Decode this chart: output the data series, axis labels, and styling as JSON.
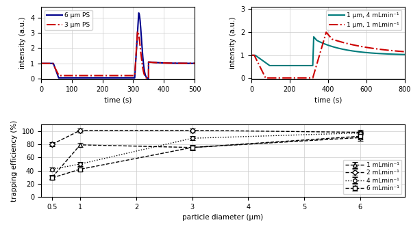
{
  "top_left": {
    "xlabel": "time (s)",
    "ylabel": "intensity (a.u.)",
    "xlim": [
      0,
      500
    ],
    "ylim": [
      -0.05,
      4.7
    ],
    "yticks": [
      0,
      1,
      2,
      3,
      4
    ],
    "legend": [
      {
        "label": "6 μm PS",
        "color": "#00008B",
        "ls": "-",
        "lw": 1.5
      },
      {
        "label": "3 μm PS",
        "color": "#CC0000",
        "ls": "-.",
        "lw": 1.5
      }
    ]
  },
  "top_right": {
    "xlabel": "time (s)",
    "ylabel": "intensity (a.u.)",
    "xlim": [
      0,
      800
    ],
    "ylim": [
      -0.05,
      3.1
    ],
    "yticks": [
      0,
      1,
      2,
      3
    ],
    "legend": [
      {
        "label": "1 μm, 4 mLmin⁻¹",
        "color": "#007B7B",
        "ls": "-",
        "lw": 1.5
      },
      {
        "label": "1 μm, 1 mLmin⁻¹",
        "color": "#CC0000",
        "ls": "-.",
        "lw": 1.5
      }
    ]
  },
  "bottom": {
    "xlabel": "particle diameter (μm)",
    "ylabel": "trapping efficiency (%)",
    "xlim": [
      0.3,
      6.8
    ],
    "ylim": [
      0,
      110
    ],
    "yticks": [
      0,
      20,
      40,
      60,
      80,
      100
    ],
    "xticks": [
      0.5,
      1,
      2,
      3,
      4,
      5,
      6
    ],
    "xticklabels": [
      "0.5",
      "1",
      "2",
      "3",
      "4",
      "5",
      "6"
    ],
    "series": [
      {
        "label": "1 mLmin⁻¹",
        "x": [
          0.5,
          1.0,
          3.0,
          6.0
        ],
        "y": [
          30,
          79,
          75,
          90
        ],
        "yerr": [
          3,
          3,
          3,
          5
        ],
        "marker": "^",
        "ls": "--",
        "color": "black",
        "mfc": "white"
      },
      {
        "label": "2 mLmin⁻¹",
        "x": [
          0.5,
          1.0,
          3.0,
          6.0
        ],
        "y": [
          80,
          101,
          101,
          98
        ],
        "yerr": [
          3,
          3,
          3,
          4
        ],
        "marker": "D",
        "ls": "--",
        "color": "black",
        "mfc": "white"
      },
      {
        "label": "4 mLmin⁻¹",
        "x": [
          0.5,
          1.0,
          3.0,
          6.0
        ],
        "y": [
          42,
          50,
          89,
          97
        ],
        "yerr": [
          3,
          3,
          3,
          3
        ],
        "marker": "o",
        "ls": ":",
        "color": "black",
        "mfc": "white"
      },
      {
        "label": "6 mLmin⁻¹",
        "x": [
          0.5,
          1.0,
          3.0,
          6.0
        ],
        "y": [
          29,
          42,
          75,
          92
        ],
        "yerr": [
          3,
          3,
          4,
          4
        ],
        "marker": "s",
        "ls": "--",
        "color": "black",
        "mfc": "white"
      }
    ]
  }
}
